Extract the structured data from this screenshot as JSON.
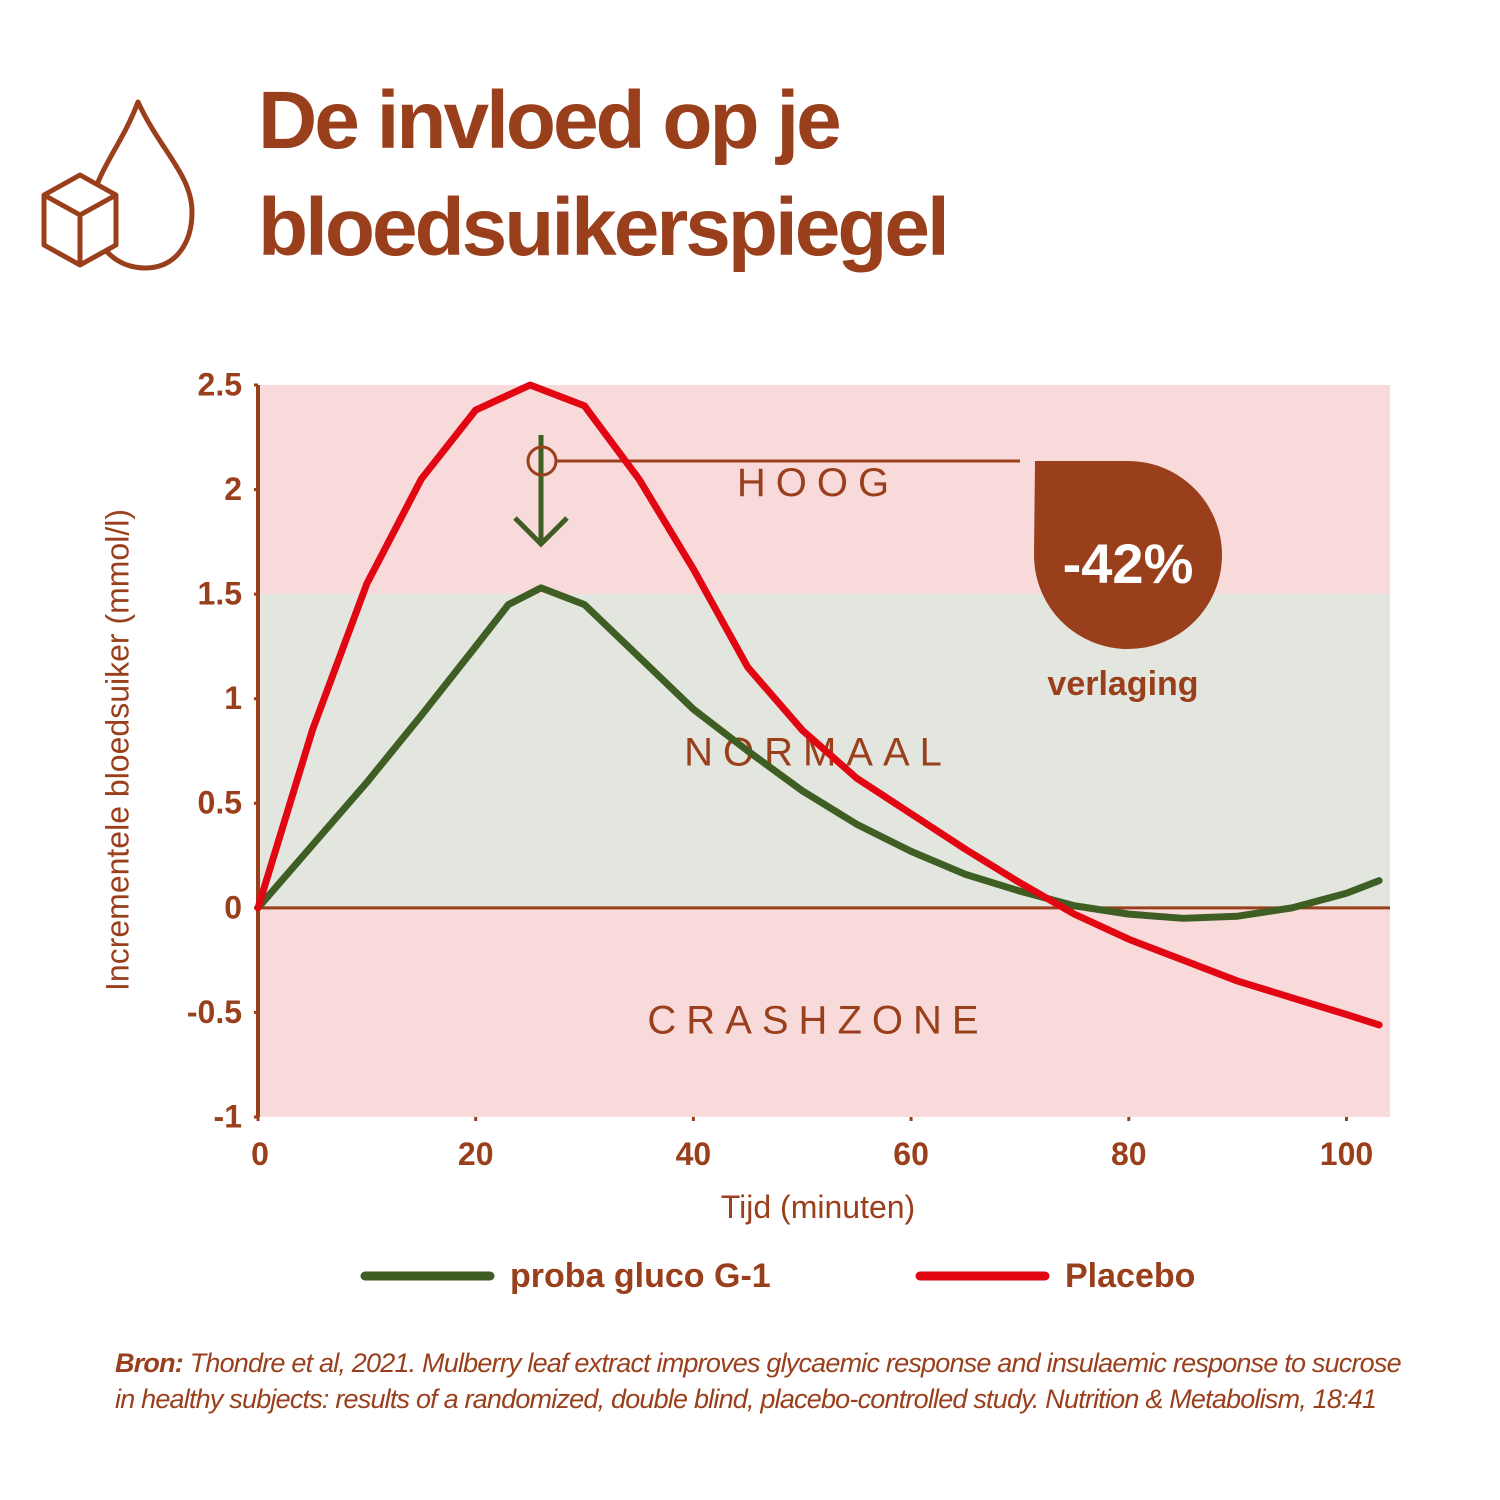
{
  "header": {
    "title_lines": [
      "De invloed op je",
      "bloedsuikerspiegel"
    ]
  },
  "chart_data": {
    "type": "line",
    "y_label": "Incrementele bloedsuiker (mmol/l)",
    "x_label": "Tijd (minuten)",
    "xlim": [
      0,
      104
    ],
    "xticks": [
      0,
      20,
      40,
      60,
      80,
      100
    ],
    "ylim": [
      -1,
      2.5
    ],
    "yticks": [
      2.5,
      2,
      1.5,
      1,
      0.5,
      0,
      -0.5,
      -1
    ],
    "zones": [
      {
        "label": "HOOG",
        "from": 1.5,
        "to": 2.5,
        "color": "#f9dadb"
      },
      {
        "label": "NORMAAL",
        "from": 0,
        "to": 1.5,
        "color": "#e3e5df"
      },
      {
        "label": "CRASHZONE",
        "from": -1,
        "to": 0,
        "color": "#f9dadb"
      }
    ],
    "series": [
      {
        "name": "proba gluco G-1",
        "color": "#3f5e23",
        "x": [
          0,
          5,
          10,
          15,
          20,
          23,
          26,
          30,
          35,
          40,
          45,
          50,
          55,
          60,
          65,
          70,
          75,
          80,
          85,
          90,
          95,
          100,
          103
        ],
        "values": [
          0,
          0.3,
          0.6,
          0.92,
          1.25,
          1.45,
          1.53,
          1.45,
          1.2,
          0.95,
          0.75,
          0.56,
          0.4,
          0.27,
          0.16,
          0.08,
          0.01,
          -0.03,
          -0.05,
          -0.04,
          0,
          0.07,
          0.13
        ]
      },
      {
        "name": "Placebo",
        "color": "#e20613",
        "x": [
          0,
          5,
          10,
          15,
          20,
          25,
          30,
          35,
          40,
          45,
          50,
          55,
          60,
          65,
          70,
          75,
          80,
          85,
          90,
          95,
          100,
          103
        ],
        "values": [
          0,
          0.85,
          1.55,
          2.05,
          2.38,
          2.5,
          2.4,
          2.05,
          1.62,
          1.15,
          0.85,
          0.62,
          0.45,
          0.28,
          0.12,
          -0.03,
          -0.15,
          -0.25,
          -0.35,
          -0.43,
          -0.51,
          -0.56
        ]
      }
    ],
    "badge": {
      "text": "-42%",
      "caption": "verlaging"
    }
  },
  "source": {
    "label": "Bron:",
    "text": "Thondre et al, 2021. Mulberry leaf extract improves glycaemic response and insulaemic response to sucrose in healthy subjects: results of a randomized, double blind, placebo-controlled study. Nutrition & Metabolism, 18:41"
  }
}
